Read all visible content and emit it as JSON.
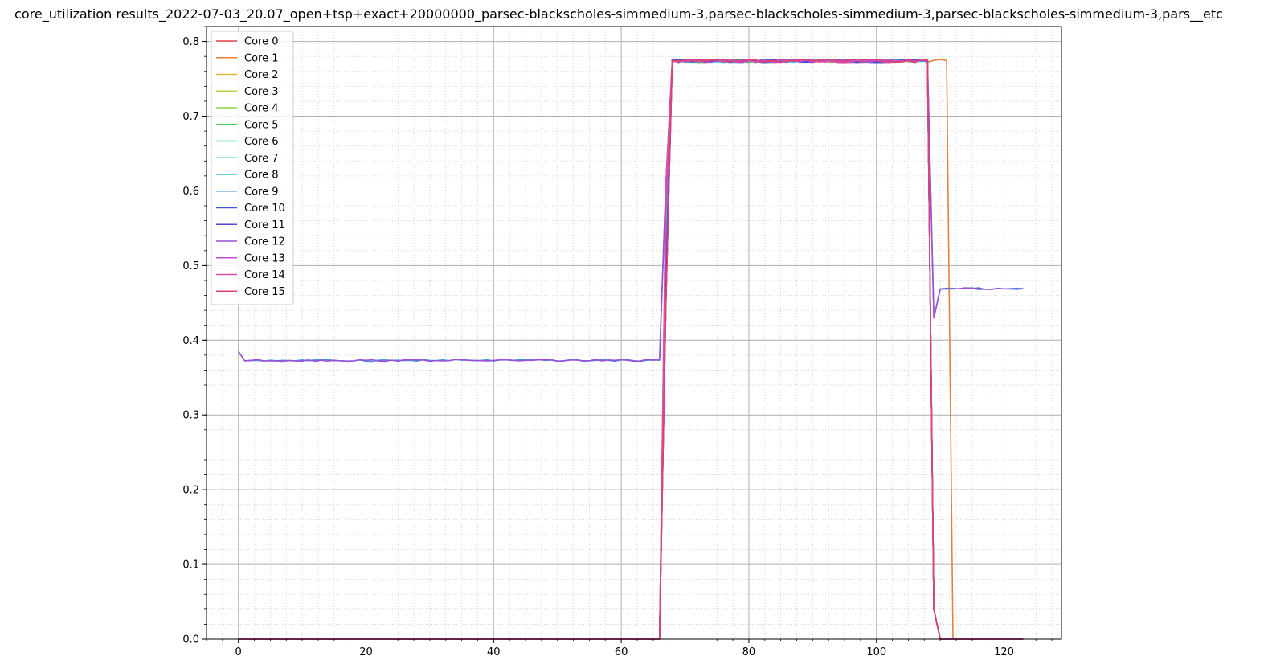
{
  "chart_data": {
    "type": "line",
    "title": "core_utilization results_2022-07-03_20.07_open+tsp+exact+20000000_parsec-blackscholes-simmedium-3,parsec-blackscholes-simmedium-3,parsec-blackscholes-simmedium-3,pars__etc",
    "xlabel": "",
    "ylabel": "",
    "xlim": [
      -5,
      129
    ],
    "ylim": [
      0,
      0.82
    ],
    "x_major_ticks": [
      0,
      20,
      40,
      60,
      80,
      100,
      120
    ],
    "x_tick_labels": [
      "0",
      "20",
      "40",
      "60",
      "80",
      "100",
      "120"
    ],
    "x_minor_step": 2.5,
    "y_major_ticks": [
      0.0,
      0.1,
      0.2,
      0.3,
      0.4,
      0.5,
      0.6,
      0.7,
      0.8
    ],
    "y_tick_labels": [
      "0.0",
      "0.1",
      "0.2",
      "0.3",
      "0.4",
      "0.5",
      "0.6",
      "0.7",
      "0.8"
    ],
    "y_minor_step": 0.02,
    "grid": {
      "major": true,
      "minor": true
    },
    "legend": {
      "position": "top-left"
    },
    "x_end": 123,
    "series": [
      {
        "name": "Core 0",
        "color": "#e6404d",
        "group": "late_0",
        "start": 66,
        "rise_end": 68,
        "fall_start": 108,
        "fall_end": 110
      },
      {
        "name": "Core 1",
        "color": "#e6803a",
        "group": "late_1",
        "start": 66,
        "rise_end": 68,
        "fall_start": 110,
        "fall_end": 111
      },
      {
        "name": "Core 2",
        "color": "#d8b640",
        "group": "late_0",
        "start": 66,
        "rise_end": 68,
        "fall_start": 108,
        "fall_end": 110
      },
      {
        "name": "Core 3",
        "color": "#bfcf40",
        "group": "late_0",
        "start": 66,
        "rise_end": 68,
        "fall_start": 108,
        "fall_end": 110
      },
      {
        "name": "Core 4",
        "color": "#8ad640",
        "group": "late_0",
        "start": 66,
        "rise_end": 68,
        "fall_start": 108,
        "fall_end": 110
      },
      {
        "name": "Core 5",
        "color": "#49cf4b",
        "group": "late_0",
        "start": 66,
        "rise_end": 68,
        "fall_start": 108,
        "fall_end": 110
      },
      {
        "name": "Core 6",
        "color": "#40d27a",
        "group": "late_0",
        "start": 66,
        "rise_end": 68,
        "fall_start": 108,
        "fall_end": 110
      },
      {
        "name": "Core 7",
        "color": "#40d1b0",
        "group": "late_0",
        "start": 66,
        "rise_end": 68,
        "fall_start": 108,
        "fall_end": 110
      },
      {
        "name": "Core 8",
        "color": "#40c9d6",
        "group": "late_0",
        "start": 66,
        "rise_end": 68,
        "fall_start": 108,
        "fall_end": 110
      },
      {
        "name": "Core 9",
        "color": "#4095d8",
        "group": "early",
        "start": 66,
        "rise_end": 68,
        "fall_start": 108,
        "fall_end": 110
      },
      {
        "name": "Core 10",
        "color": "#4055d6",
        "group": "late_0",
        "start": 66,
        "rise_end": 68,
        "fall_start": 108,
        "fall_end": 110
      },
      {
        "name": "Core 11",
        "color": "#5c40c9",
        "group": "late_0",
        "start": 66,
        "rise_end": 68,
        "fall_start": 108,
        "fall_end": 110
      },
      {
        "name": "Core 12",
        "color": "#9a4fd6",
        "group": "early",
        "start": 66,
        "rise_end": 68,
        "fall_start": 108,
        "fall_end": 110
      },
      {
        "name": "Core 13",
        "color": "#c34fd0",
        "group": "late_0",
        "start": 66,
        "rise_end": 68,
        "fall_start": 108,
        "fall_end": 110
      },
      {
        "name": "Core 14",
        "color": "#d94fa8",
        "group": "late_0",
        "start": 66,
        "rise_end": 68,
        "fall_start": 108,
        "fall_end": 110
      },
      {
        "name": "Core 15",
        "color": "#e04070",
        "group": "late_0",
        "start": 66,
        "rise_end": 68,
        "fall_start": 108,
        "fall_end": 110
      }
    ],
    "levels": {
      "phase1": 0.373,
      "phase1_start": 0.385,
      "phase2": 0.774,
      "phase3": 0.469
    }
  }
}
